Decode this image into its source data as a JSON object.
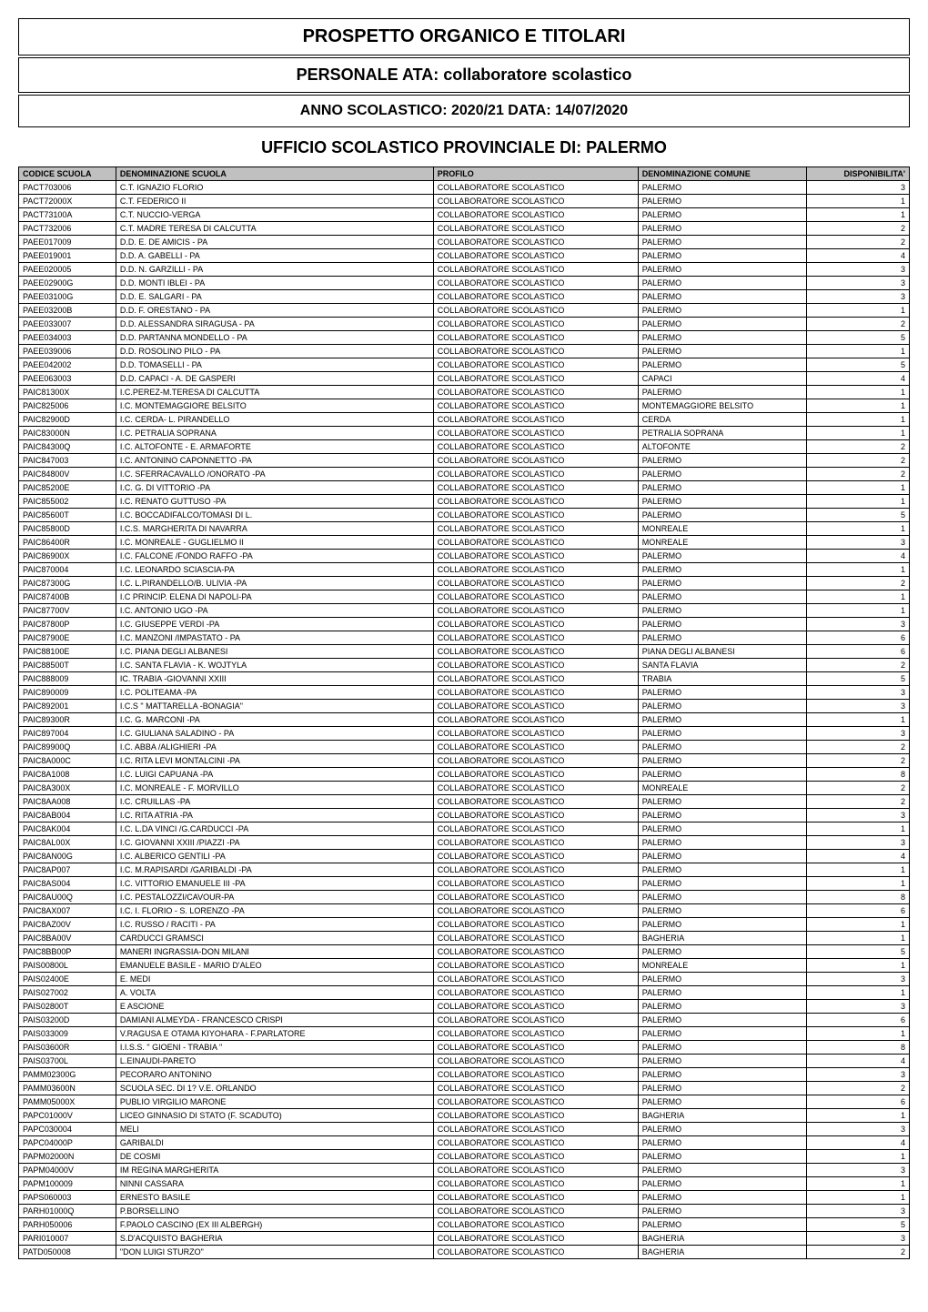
{
  "titles": {
    "main": "PROSPETTO ORGANICO E TITOLARI",
    "personale": "PERSONALE ATA: collaboratore scolastico",
    "anno": "ANNO SCOLASTICO: 2020/21 DATA: 14/07/2020",
    "ufficio": "UFFICIO SCOLASTICO PROVINCIALE DI: PALERMO"
  },
  "columns": {
    "codice": "CODICE SCUOLA",
    "denominazione": "DENOMINAZIONE SCUOLA",
    "profilo": "PROFILO",
    "comune": "DENOMINAZIONE COMUNE",
    "disponibilita": "DISPONIBILITA'"
  },
  "style": {
    "header_bg": "#c0c0c0",
    "border_color": "#000000",
    "font_family": "Arial",
    "title_fontsize": 20,
    "subtitle_fontsize": 18,
    "table_fontsize": 9,
    "col_widths": {
      "codice": 95,
      "denom": 310,
      "profilo": 200,
      "comune": 165,
      "disp": 100
    },
    "disp_align": "right"
  },
  "rows": [
    {
      "codice": "PACT703006",
      "denom": "C.T. IGNAZIO FLORIO",
      "profilo": "COLLABORATORE SCOLASTICO",
      "comune": "PALERMO",
      "disp": "3"
    },
    {
      "codice": "PACT72000X",
      "denom": "C.T. FEDERICO II",
      "profilo": "COLLABORATORE SCOLASTICO",
      "comune": "PALERMO",
      "disp": "1"
    },
    {
      "codice": "PACT73100A",
      "denom": "C.T. NUCCIO-VERGA",
      "profilo": "COLLABORATORE SCOLASTICO",
      "comune": "PALERMO",
      "disp": "1"
    },
    {
      "codice": "PACT732006",
      "denom": "C.T. MADRE TERESA DI CALCUTTA",
      "profilo": "COLLABORATORE SCOLASTICO",
      "comune": "PALERMO",
      "disp": "2"
    },
    {
      "codice": "PAEE017009",
      "denom": "D.D. E. DE AMICIS - PA",
      "profilo": "COLLABORATORE SCOLASTICO",
      "comune": "PALERMO",
      "disp": "2"
    },
    {
      "codice": "PAEE019001",
      "denom": "D.D. A. GABELLI - PA",
      "profilo": "COLLABORATORE SCOLASTICO",
      "comune": "PALERMO",
      "disp": "4"
    },
    {
      "codice": "PAEE020005",
      "denom": "D.D. N. GARZILLI - PA",
      "profilo": "COLLABORATORE SCOLASTICO",
      "comune": "PALERMO",
      "disp": "3"
    },
    {
      "codice": "PAEE02900G",
      "denom": "D.D. MONTI IBLEI - PA",
      "profilo": "COLLABORATORE SCOLASTICO",
      "comune": "PALERMO",
      "disp": "3"
    },
    {
      "codice": "PAEE03100G",
      "denom": "D.D. E. SALGARI - PA",
      "profilo": "COLLABORATORE SCOLASTICO",
      "comune": "PALERMO",
      "disp": "3"
    },
    {
      "codice": "PAEE03200B",
      "denom": "D.D. F. ORESTANO - PA",
      "profilo": "COLLABORATORE SCOLASTICO",
      "comune": "PALERMO",
      "disp": "1"
    },
    {
      "codice": "PAEE033007",
      "denom": "D.D. ALESSANDRA SIRAGUSA - PA",
      "profilo": "COLLABORATORE SCOLASTICO",
      "comune": "PALERMO",
      "disp": "2"
    },
    {
      "codice": "PAEE034003",
      "denom": "D.D. PARTANNA MONDELLO - PA",
      "profilo": "COLLABORATORE SCOLASTICO",
      "comune": "PALERMO",
      "disp": "5"
    },
    {
      "codice": "PAEE039006",
      "denom": "D.D. ROSOLINO PILO - PA",
      "profilo": "COLLABORATORE SCOLASTICO",
      "comune": "PALERMO",
      "disp": "1"
    },
    {
      "codice": "PAEE042002",
      "denom": "D.D. TOMASELLI - PA",
      "profilo": "COLLABORATORE SCOLASTICO",
      "comune": "PALERMO",
      "disp": "5"
    },
    {
      "codice": "PAEE063003",
      "denom": "D.D. CAPACI - A. DE GASPERI",
      "profilo": "COLLABORATORE SCOLASTICO",
      "comune": "CAPACI",
      "disp": "4"
    },
    {
      "codice": "PAIC81300X",
      "denom": "I.C.PEREZ-M.TERESA DI CALCUTTA",
      "profilo": "COLLABORATORE SCOLASTICO",
      "comune": "PALERMO",
      "disp": "1"
    },
    {
      "codice": "PAIC825006",
      "denom": "I.C. MONTEMAGGIORE BELSITO",
      "profilo": "COLLABORATORE SCOLASTICO",
      "comune": "MONTEMAGGIORE BELSITO",
      "disp": "1"
    },
    {
      "codice": "PAIC82900D",
      "denom": "I.C. CERDA- L. PIRANDELLO",
      "profilo": "COLLABORATORE SCOLASTICO",
      "comune": "CERDA",
      "disp": "1"
    },
    {
      "codice": "PAIC83000N",
      "denom": "I.C. PETRALIA SOPRANA",
      "profilo": "COLLABORATORE SCOLASTICO",
      "comune": "PETRALIA SOPRANA",
      "disp": "1"
    },
    {
      "codice": "PAIC84300Q",
      "denom": "I.C. ALTOFONTE - E. ARMAFORTE",
      "profilo": "COLLABORATORE SCOLASTICO",
      "comune": "ALTOFONTE",
      "disp": "2"
    },
    {
      "codice": "PAIC847003",
      "denom": "I.C. ANTONINO CAPONNETTO -PA",
      "profilo": "COLLABORATORE SCOLASTICO",
      "comune": "PALERMO",
      "disp": "2"
    },
    {
      "codice": "PAIC84800V",
      "denom": "I.C. SFERRACAVALLO /ONORATO -PA",
      "profilo": "COLLABORATORE SCOLASTICO",
      "comune": "PALERMO",
      "disp": "2"
    },
    {
      "codice": "PAIC85200E",
      "denom": "I.C. G. DI VITTORIO -PA",
      "profilo": "COLLABORATORE SCOLASTICO",
      "comune": "PALERMO",
      "disp": "1"
    },
    {
      "codice": "PAIC855002",
      "denom": "I.C. RENATO GUTTUSO -PA",
      "profilo": "COLLABORATORE SCOLASTICO",
      "comune": "PALERMO",
      "disp": "1"
    },
    {
      "codice": "PAIC85600T",
      "denom": "I.C. BOCCADIFALCO/TOMASI DI L.",
      "profilo": "COLLABORATORE SCOLASTICO",
      "comune": "PALERMO",
      "disp": "5"
    },
    {
      "codice": "PAIC85800D",
      "denom": "I.C.S. MARGHERITA DI NAVARRA",
      "profilo": "COLLABORATORE SCOLASTICO",
      "comune": "MONREALE",
      "disp": "1"
    },
    {
      "codice": "PAIC86400R",
      "denom": "I.C. MONREALE - GUGLIELMO II",
      "profilo": "COLLABORATORE SCOLASTICO",
      "comune": "MONREALE",
      "disp": "3"
    },
    {
      "codice": "PAIC86900X",
      "denom": "I.C. FALCONE /FONDO RAFFO -PA",
      "profilo": "COLLABORATORE SCOLASTICO",
      "comune": "PALERMO",
      "disp": "4"
    },
    {
      "codice": "PAIC870004",
      "denom": "I.C. LEONARDO SCIASCIA-PA",
      "profilo": "COLLABORATORE SCOLASTICO",
      "comune": "PALERMO",
      "disp": "1"
    },
    {
      "codice": "PAIC87300G",
      "denom": "I.C. L.PIRANDELLO/B. ULIVIA -PA",
      "profilo": "COLLABORATORE SCOLASTICO",
      "comune": "PALERMO",
      "disp": "2"
    },
    {
      "codice": "PAIC87400B",
      "denom": "I.C PRINCIP. ELENA DI NAPOLI-PA",
      "profilo": "COLLABORATORE SCOLASTICO",
      "comune": "PALERMO",
      "disp": "1"
    },
    {
      "codice": "PAIC87700V",
      "denom": "I.C. ANTONIO UGO -PA",
      "profilo": "COLLABORATORE SCOLASTICO",
      "comune": "PALERMO",
      "disp": "1"
    },
    {
      "codice": "PAIC87800P",
      "denom": "I.C. GIUSEPPE VERDI -PA",
      "profilo": "COLLABORATORE SCOLASTICO",
      "comune": "PALERMO",
      "disp": "3"
    },
    {
      "codice": "PAIC87900E",
      "denom": "I.C. MANZONI /IMPASTATO - PA",
      "profilo": "COLLABORATORE SCOLASTICO",
      "comune": "PALERMO",
      "disp": "6"
    },
    {
      "codice": "PAIC88100E",
      "denom": "I.C. PIANA DEGLI ALBANESI",
      "profilo": "COLLABORATORE SCOLASTICO",
      "comune": "PIANA DEGLI ALBANESI",
      "disp": "6"
    },
    {
      "codice": "PAIC88500T",
      "denom": "I.C. SANTA FLAVIA - K. WOJTYLA",
      "profilo": "COLLABORATORE SCOLASTICO",
      "comune": "SANTA FLAVIA",
      "disp": "2"
    },
    {
      "codice": "PAIC888009",
      "denom": "IC. TRABIA -GIOVANNI XXIII",
      "profilo": "COLLABORATORE SCOLASTICO",
      "comune": "TRABIA",
      "disp": "5"
    },
    {
      "codice": "PAIC890009",
      "denom": "I.C. POLITEAMA -PA",
      "profilo": "COLLABORATORE SCOLASTICO",
      "comune": "PALERMO",
      "disp": "3"
    },
    {
      "codice": "PAIC892001",
      "denom": "I.C.S \" MATTARELLA -BONAGIA\"",
      "profilo": "COLLABORATORE SCOLASTICO",
      "comune": "PALERMO",
      "disp": "3"
    },
    {
      "codice": "PAIC89300R",
      "denom": "I.C. G. MARCONI -PA",
      "profilo": "COLLABORATORE SCOLASTICO",
      "comune": "PALERMO",
      "disp": "1"
    },
    {
      "codice": "PAIC897004",
      "denom": "I.C. GIULIANA SALADINO - PA",
      "profilo": "COLLABORATORE SCOLASTICO",
      "comune": "PALERMO",
      "disp": "3"
    },
    {
      "codice": "PAIC89900Q",
      "denom": "I.C. ABBA /ALIGHIERI -PA",
      "profilo": "COLLABORATORE SCOLASTICO",
      "comune": "PALERMO",
      "disp": "2"
    },
    {
      "codice": "PAIC8A000C",
      "denom": "I.C. RITA LEVI MONTALCINI -PA",
      "profilo": "COLLABORATORE SCOLASTICO",
      "comune": "PALERMO",
      "disp": "2"
    },
    {
      "codice": "PAIC8A1008",
      "denom": "I.C. LUIGI CAPUANA -PA",
      "profilo": "COLLABORATORE SCOLASTICO",
      "comune": "PALERMO",
      "disp": "8"
    },
    {
      "codice": "PAIC8A300X",
      "denom": "I.C. MONREALE - F. MORVILLO",
      "profilo": "COLLABORATORE SCOLASTICO",
      "comune": "MONREALE",
      "disp": "2"
    },
    {
      "codice": "PAIC8AA008",
      "denom": "I.C. CRUILLAS -PA",
      "profilo": "COLLABORATORE SCOLASTICO",
      "comune": "PALERMO",
      "disp": "2"
    },
    {
      "codice": "PAIC8AB004",
      "denom": "I.C. RITA ATRIA -PA",
      "profilo": "COLLABORATORE SCOLASTICO",
      "comune": "PALERMO",
      "disp": "3"
    },
    {
      "codice": "PAIC8AK004",
      "denom": "I.C. L.DA VINCI /G.CARDUCCI -PA",
      "profilo": "COLLABORATORE SCOLASTICO",
      "comune": "PALERMO",
      "disp": "1"
    },
    {
      "codice": "PAIC8AL00X",
      "denom": "I.C. GIOVANNI XXIII /PIAZZI -PA",
      "profilo": "COLLABORATORE SCOLASTICO",
      "comune": "PALERMO",
      "disp": "3"
    },
    {
      "codice": "PAIC8AN00G",
      "denom": "I.C. ALBERICO GENTILI -PA",
      "profilo": "COLLABORATORE SCOLASTICO",
      "comune": "PALERMO",
      "disp": "4"
    },
    {
      "codice": "PAIC8AP007",
      "denom": "I.C. M.RAPISARDI /GARIBALDI -PA",
      "profilo": "COLLABORATORE SCOLASTICO",
      "comune": "PALERMO",
      "disp": "1"
    },
    {
      "codice": "PAIC8AS004",
      "denom": "I.C.  VITTORIO EMANUELE III -PA",
      "profilo": "COLLABORATORE SCOLASTICO",
      "comune": "PALERMO",
      "disp": "1"
    },
    {
      "codice": "PAIC8AU00Q",
      "denom": "I.C. PESTALOZZI/CAVOUR-PA",
      "profilo": "COLLABORATORE SCOLASTICO",
      "comune": "PALERMO",
      "disp": "8"
    },
    {
      "codice": "PAIC8AX007",
      "denom": "I.C. I. FLORIO - S. LORENZO -PA",
      "profilo": "COLLABORATORE SCOLASTICO",
      "comune": "PALERMO",
      "disp": "6"
    },
    {
      "codice": "PAIC8AZ00V",
      "denom": "I.C. RUSSO / RACITI - PA",
      "profilo": "COLLABORATORE SCOLASTICO",
      "comune": "PALERMO",
      "disp": "1"
    },
    {
      "codice": "PAIC8BA00V",
      "denom": "CARDUCCI GRAMSCI",
      "profilo": "COLLABORATORE SCOLASTICO",
      "comune": "BAGHERIA",
      "disp": "1"
    },
    {
      "codice": "PAIC8BB00P",
      "denom": "MANERI INGRASSIA-DON MILANI",
      "profilo": "COLLABORATORE SCOLASTICO",
      "comune": "PALERMO",
      "disp": "5"
    },
    {
      "codice": "PAIS00800L",
      "denom": "EMANUELE BASILE - MARIO D'ALEO",
      "profilo": "COLLABORATORE SCOLASTICO",
      "comune": "MONREALE",
      "disp": "1"
    },
    {
      "codice": "PAIS02400E",
      "denom": "E. MEDI",
      "profilo": "COLLABORATORE SCOLASTICO",
      "comune": "PALERMO",
      "disp": "3"
    },
    {
      "codice": "PAIS027002",
      "denom": "A. VOLTA",
      "profilo": "COLLABORATORE SCOLASTICO",
      "comune": "PALERMO",
      "disp": "1"
    },
    {
      "codice": "PAIS02800T",
      "denom": "E ASCIONE",
      "profilo": "COLLABORATORE SCOLASTICO",
      "comune": "PALERMO",
      "disp": "3"
    },
    {
      "codice": "PAIS03200D",
      "denom": "DAMIANI ALMEYDA - FRANCESCO CRISPI",
      "profilo": "COLLABORATORE SCOLASTICO",
      "comune": "PALERMO",
      "disp": "6"
    },
    {
      "codice": "PAIS033009",
      "denom": "V.RAGUSA E OTAMA KIYOHARA - F.PARLATORE",
      "profilo": "COLLABORATORE SCOLASTICO",
      "comune": "PALERMO",
      "disp": "1"
    },
    {
      "codice": "PAIS03600R",
      "denom": "I.I.S.S. \" GIOENI -  TRABIA \"",
      "profilo": "COLLABORATORE SCOLASTICO",
      "comune": "PALERMO",
      "disp": "8"
    },
    {
      "codice": "PAIS03700L",
      "denom": "L.EINAUDI-PARETO",
      "profilo": "COLLABORATORE SCOLASTICO",
      "comune": "PALERMO",
      "disp": "4"
    },
    {
      "codice": "PAMM02300G",
      "denom": "PECORARO ANTONINO",
      "profilo": "COLLABORATORE SCOLASTICO",
      "comune": "PALERMO",
      "disp": "3"
    },
    {
      "codice": "PAMM03600N",
      "denom": "SCUOLA SEC. DI 1? V.E. ORLANDO",
      "profilo": "COLLABORATORE SCOLASTICO",
      "comune": "PALERMO",
      "disp": "2"
    },
    {
      "codice": "PAMM05000X",
      "denom": "PUBLIO VIRGILIO MARONE",
      "profilo": "COLLABORATORE SCOLASTICO",
      "comune": "PALERMO",
      "disp": "6"
    },
    {
      "codice": "PAPC01000V",
      "denom": "LICEO GINNASIO DI STATO (F. SCADUTO)",
      "profilo": "COLLABORATORE SCOLASTICO",
      "comune": "BAGHERIA",
      "disp": "1"
    },
    {
      "codice": "PAPC030004",
      "denom": "MELI",
      "profilo": "COLLABORATORE SCOLASTICO",
      "comune": "PALERMO",
      "disp": "3"
    },
    {
      "codice": "PAPC04000P",
      "denom": "GARIBALDI",
      "profilo": "COLLABORATORE SCOLASTICO",
      "comune": "PALERMO",
      "disp": "4"
    },
    {
      "codice": "PAPM02000N",
      "denom": "DE COSMI",
      "profilo": "COLLABORATORE SCOLASTICO",
      "comune": "PALERMO",
      "disp": "1"
    },
    {
      "codice": "PAPM04000V",
      "denom": "IM REGINA MARGHERITA",
      "profilo": "COLLABORATORE SCOLASTICO",
      "comune": "PALERMO",
      "disp": "3"
    },
    {
      "codice": "PAPM100009",
      "denom": "NINNI CASSARA",
      "profilo": "COLLABORATORE SCOLASTICO",
      "comune": "PALERMO",
      "disp": "1"
    },
    {
      "codice": "PAPS060003",
      "denom": "ERNESTO BASILE",
      "profilo": "COLLABORATORE SCOLASTICO",
      "comune": "PALERMO",
      "disp": "1"
    },
    {
      "codice": "PARH01000Q",
      "denom": "P.BORSELLINO",
      "profilo": "COLLABORATORE SCOLASTICO",
      "comune": "PALERMO",
      "disp": "3"
    },
    {
      "codice": "PARH050006",
      "denom": "F.PAOLO CASCINO (EX III ALBERGH)",
      "profilo": "COLLABORATORE SCOLASTICO",
      "comune": "PALERMO",
      "disp": "5"
    },
    {
      "codice": "PARI010007",
      "denom": "S.D'ACQUISTO BAGHERIA",
      "profilo": "COLLABORATORE SCOLASTICO",
      "comune": "BAGHERIA",
      "disp": "3"
    },
    {
      "codice": "PATD050008",
      "denom": "\"DON LUIGI STURZO\"",
      "profilo": "COLLABORATORE SCOLASTICO",
      "comune": "BAGHERIA",
      "disp": "2"
    }
  ]
}
